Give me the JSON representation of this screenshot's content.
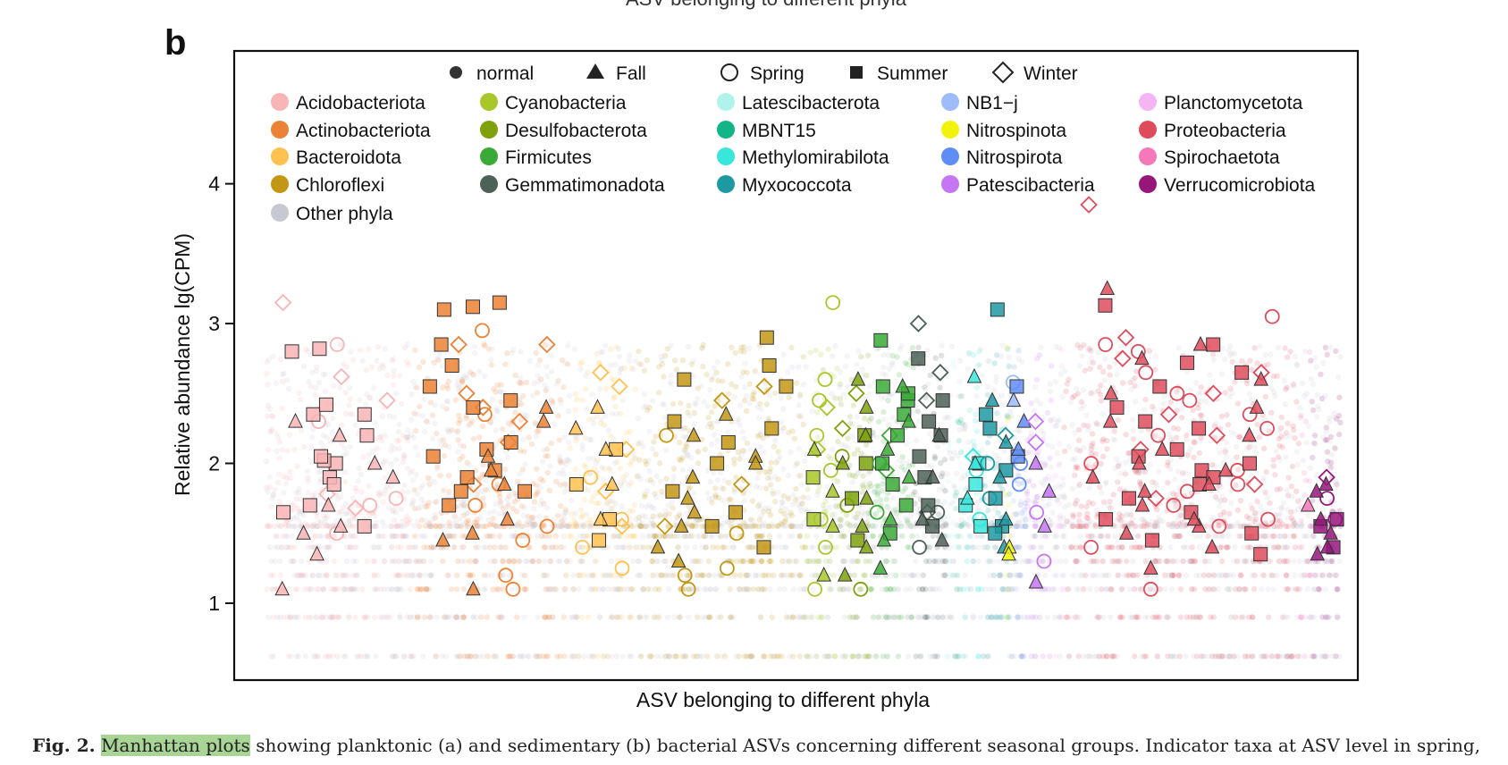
{
  "header_fragment": "ASV belonging to different phyla",
  "panel_label": "b",
  "caption": {
    "fig_label": "Fig. 2.",
    "highlight": "Manhattan plots",
    "rest": "showing planktonic (a) and sedimentary (b) bacterial ASVs concerning different seasonal groups. Indicator taxa at ASV level in spring,"
  },
  "chart_data": {
    "type": "scatter",
    "xlabel": "ASV belonging to different phyla",
    "ylabel": "Relative abundance lg(CPM)",
    "ylim": [
      0.45,
      4.95
    ],
    "yticks": [
      1,
      2,
      3,
      4
    ],
    "grid": false,
    "legend_placement": "top, inside plot area",
    "shape_legend": [
      {
        "label": "normal",
        "shape": "dot"
      },
      {
        "label": "Fall",
        "shape": "triangle"
      },
      {
        "label": "Spring",
        "shape": "circle-open"
      },
      {
        "label": "Summer",
        "shape": "square"
      },
      {
        "label": "Winter",
        "shape": "diamond-open"
      }
    ],
    "phyla": [
      {
        "name": "Acidobacteriota",
        "color": "#f8b4b6",
        "x_range": [
          0,
          8.8
        ],
        "fall": [
          2.2,
          2.3,
          2.0,
          1.55,
          1.7,
          1.9,
          1.1,
          1.35,
          1.5
        ],
        "spring": [
          1.7,
          1.75,
          2.85,
          1.5,
          2.3
        ],
        "summer": [
          2.35,
          2.2,
          1.9,
          2.0,
          2.02,
          1.85,
          1.7,
          2.05,
          1.65,
          1.55,
          2.8,
          2.42,
          2.82,
          2.35
        ],
        "winter": [
          2.62,
          3.15,
          2.45,
          1.68,
          1.78
        ]
      },
      {
        "name": "Actinobacteriota",
        "color": "#ec8235",
        "x_range": [
          8.8,
          18.0
        ],
        "fall": [
          2.3,
          1.85,
          2.05,
          1.6,
          1.45,
          1.1,
          2.4,
          1.95,
          1.5
        ],
        "spring": [
          2.95,
          1.85,
          1.7,
          1.45,
          1.2,
          1.1,
          2.35,
          1.55
        ],
        "summer": [
          3.15,
          3.12,
          3.1,
          2.85,
          2.7,
          2.55,
          2.4,
          2.1,
          1.95,
          2.05,
          1.8,
          1.7,
          2.45,
          2.15,
          1.9,
          1.8
        ],
        "winter": [
          2.85,
          2.5,
          2.3,
          2.15,
          1.85,
          2.85,
          2.4
        ]
      },
      {
        "name": "Bacteroidota",
        "color": "#ffc14f",
        "x_range": [
          18.0,
          22.0
        ],
        "fall": [
          2.4,
          2.25,
          2.1,
          1.85,
          1.6
        ],
        "spring": [
          1.9,
          1.6,
          1.4,
          1.25
        ],
        "summer": [
          2.1,
          1.85,
          1.6,
          1.45
        ],
        "winter": [
          2.65,
          2.55,
          2.1,
          1.8,
          1.55
        ]
      },
      {
        "name": "Chloroflexi",
        "color": "#c39713",
        "x_range": [
          22.0,
          32.0
        ],
        "fall": [
          2.35,
          2.2,
          2.05,
          1.9,
          1.75,
          1.55,
          1.4,
          1.3,
          1.65,
          2.0
        ],
        "spring": [
          2.2,
          1.5,
          1.25,
          1.2,
          1.1
        ],
        "summer": [
          2.9,
          2.6,
          2.3,
          2.25,
          2.15,
          2.0,
          1.8,
          1.65,
          1.55,
          1.4,
          2.7,
          2.55
        ],
        "winter": [
          2.55,
          2.45,
          1.55,
          1.85
        ]
      },
      {
        "name": "Cyanobacteria",
        "color": "#a8c82a",
        "x_range": [
          32.0,
          34.0
        ],
        "fall": [
          2.1,
          1.8,
          1.55,
          1.2
        ],
        "spring": [
          3.15,
          2.6,
          2.45,
          2.2,
          1.95,
          1.6,
          1.4,
          1.1
        ],
        "summer": [
          1.9,
          1.6
        ],
        "winter": [
          2.4,
          2.1
        ]
      },
      {
        "name": "Desulfobacterota",
        "color": "#7ea10c",
        "x_range": [
          34.0,
          36.0
        ],
        "fall": [
          2.6,
          2.4,
          2.2,
          2.0,
          1.75,
          1.55,
          1.4,
          1.2
        ],
        "spring": [
          2.05,
          1.7,
          1.1
        ],
        "summer": [
          2.2,
          2.0,
          1.75,
          1.45
        ],
        "winter": [
          2.5,
          2.25
        ]
      },
      {
        "name": "Firmicutes",
        "color": "#3aaa36",
        "x_range": [
          36.0,
          38.6
        ],
        "fall": [
          2.55,
          2.3,
          2.1,
          1.9,
          1.6,
          1.45,
          1.25
        ],
        "spring": [
          2.0,
          1.65
        ],
        "summer": [
          2.88,
          2.55,
          2.45,
          2.35,
          2.2,
          2.0,
          1.85,
          1.7,
          1.5,
          2.5
        ],
        "winter": [
          2.2,
          1.95
        ]
      },
      {
        "name": "Gemmatimonadota",
        "color": "#4c6157",
        "x_range": [
          38.6,
          40.5
        ],
        "fall": [
          2.2,
          1.9,
          1.6,
          1.45
        ],
        "spring": [
          1.65,
          1.4
        ],
        "summer": [
          2.75,
          2.45,
          2.3,
          2.2,
          2.05,
          1.9,
          1.7,
          1.55
        ],
        "winter": [
          3.0,
          2.65,
          2.45,
          1.65
        ]
      },
      {
        "name": "Latescibacterota",
        "color": "#b0f2ec",
        "x_range": [
          40.5,
          41.0
        ],
        "fall": [],
        "spring": [],
        "summer": [],
        "winter": []
      },
      {
        "name": "MBNT15",
        "color": "#11b586",
        "x_range": [
          41.0,
          41.5
        ],
        "fall": [],
        "spring": [],
        "summer": [],
        "winter": []
      },
      {
        "name": "Methylomirabilota",
        "color": "#39e6dc",
        "x_range": [
          41.5,
          42.7
        ],
        "fall": [
          2.62,
          2.0,
          1.75
        ],
        "spring": [
          1.95,
          1.6
        ],
        "summer": [
          2.0,
          1.85,
          1.7,
          1.55
        ],
        "winter": [
          2.05
        ]
      },
      {
        "name": "Myxococcota",
        "color": "#1d99a2",
        "x_range": [
          42.7,
          44.3
        ],
        "fall": [
          2.45,
          2.15,
          1.9,
          1.6,
          1.4
        ],
        "spring": [
          2.0,
          1.75
        ],
        "summer": [
          3.1,
          2.35,
          2.25,
          1.95,
          1.75,
          1.55,
          1.5
        ],
        "winter": [
          2.2
        ]
      },
      {
        "name": "NB1−j",
        "color": "#9ebcfa",
        "x_range": [
          44.3,
          44.6
        ],
        "fall": [
          2.45
        ],
        "spring": [
          2.58
        ],
        "summer": [],
        "winter": []
      },
      {
        "name": "Nitrospinota",
        "color": "#f2f20a",
        "x_range": [
          44.0,
          44.3
        ],
        "fall": [
          1.4,
          1.35
        ],
        "spring": [],
        "summer": [],
        "winter": []
      },
      {
        "name": "Nitrospirota",
        "color": "#5f8cf5",
        "x_range": [
          44.6,
          45.3
        ],
        "fall": [
          2.3,
          2.1
        ],
        "spring": [
          2.0,
          1.85
        ],
        "summer": [
          2.55,
          2.05
        ],
        "winter": []
      },
      {
        "name": "Patescibacteria",
        "color": "#c676f2",
        "x_range": [
          45.3,
          46.8
        ],
        "fall": [
          2.0,
          1.8,
          1.55,
          1.15
        ],
        "spring": [
          1.65,
          1.3
        ],
        "summer": [],
        "winter": [
          2.3,
          2.15
        ]
      },
      {
        "name": "Planctomycetota",
        "color": "#f5b5f5",
        "x_range": [
          46.8,
          47.5
        ],
        "fall": [],
        "spring": [],
        "summer": [],
        "winter": []
      },
      {
        "name": "Proteobacteria",
        "color": "#de4c5c",
        "x_range": [
          47.5,
          61.5
        ],
        "fall": [
          3.25,
          2.85,
          2.6,
          2.4,
          2.2,
          2.0,
          1.85,
          1.7,
          1.55,
          1.4,
          1.25,
          2.75,
          2.5,
          2.1,
          1.95,
          1.8,
          1.6,
          1.5,
          2.3,
          1.9
        ],
        "spring": [
          3.05,
          2.85,
          2.8,
          2.5,
          2.2,
          2.0,
          1.85,
          1.7,
          1.55,
          1.4,
          1.1,
          2.65,
          2.35,
          1.95,
          1.6,
          2.25,
          1.8,
          2.45
        ],
        "summer": [
          3.13,
          2.85,
          2.72,
          2.65,
          2.4,
          2.25,
          2.1,
          2.0,
          1.95,
          1.85,
          1.75,
          1.6,
          1.5,
          1.45,
          2.3,
          2.05,
          1.9,
          1.65,
          2.55,
          1.35
        ],
        "winter": [
          3.85,
          2.9,
          2.75,
          2.65,
          2.5,
          2.35,
          2.1,
          1.85,
          2.2,
          1.75
        ]
      },
      {
        "name": "Spirochaetota",
        "color": "#f578ba",
        "x_range": [
          61.5,
          62.2
        ],
        "fall": [
          1.7
        ],
        "spring": [],
        "summer": [],
        "winter": []
      },
      {
        "name": "Verrucomicrobiota",
        "color": "#97167b",
        "x_range": [
          62.2,
          64.0
        ],
        "fall": [
          1.85,
          1.6,
          1.4,
          1.5,
          1.35,
          1.8
        ],
        "spring": [
          1.75,
          1.6
        ],
        "summer": [
          1.55,
          1.4,
          1.6
        ],
        "winter": [
          1.9
        ]
      },
      {
        "name": "Other phyla",
        "color": "#c8c8d2",
        "x_range": [
          0,
          64.0
        ],
        "fall": [],
        "spring": [],
        "summer": [],
        "winter": []
      }
    ]
  }
}
